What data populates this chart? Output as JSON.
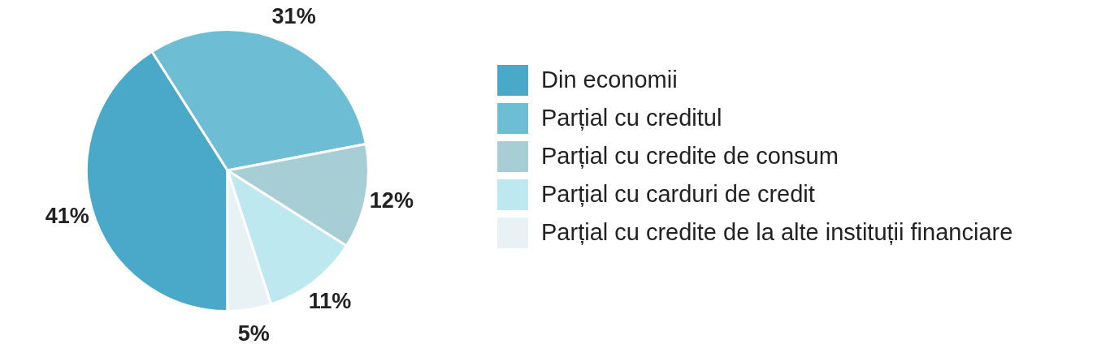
{
  "chart_data": {
    "type": "pie",
    "categories": [
      "Din economii",
      "Parțial cu creditul",
      "Parțial cu credite de consum",
      "Parțial cu carduri de credit",
      "Parțial cu credite de la alte instituții financiare"
    ],
    "values": [
      41,
      31,
      12,
      11,
      5
    ],
    "value_labels": [
      "41%",
      "31%",
      "12%",
      "11%",
      "5%"
    ],
    "colors": [
      "#4aa9c9",
      "#6dbdd4",
      "#a7cdd5",
      "#bee8ef",
      "#e8f1f4"
    ],
    "legend": "right"
  }
}
